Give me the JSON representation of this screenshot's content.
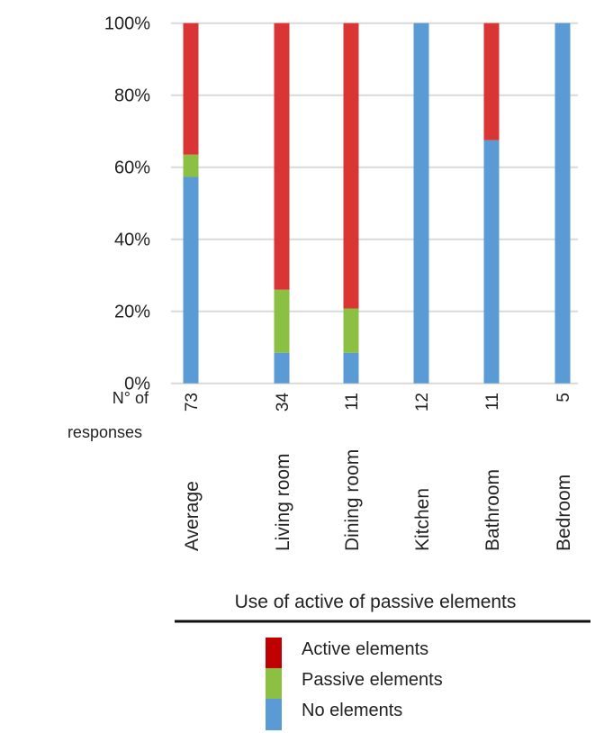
{
  "chart_data": {
    "type": "bar",
    "stacked": true,
    "percent": true,
    "categories": [
      "Average",
      "Living room",
      "Dining room",
      "Kitchen",
      "Bathroom",
      "Bedroom"
    ],
    "responses_label": [
      "N° of",
      "responses"
    ],
    "responses": [
      "73",
      "34",
      "11",
      "12",
      "11",
      "5"
    ],
    "series": [
      {
        "name": "No elements",
        "color": "#5b9bd5",
        "values": [
          57.3,
          8.5,
          8.5,
          100,
          67.5,
          100
        ]
      },
      {
        "name": "Passive elements",
        "color": "#8cc043",
        "values": [
          6.2,
          17.5,
          12.3,
          0,
          0,
          0
        ]
      },
      {
        "name": "Active elements",
        "color": "#d93535",
        "values": [
          36.5,
          74.0,
          79.2,
          0,
          32.5,
          0
        ]
      }
    ],
    "legend_colors": [
      "#c00000",
      "#8cc043",
      "#5b9bd5"
    ],
    "ylim": [
      0,
      100
    ],
    "yticks": [
      "0%",
      "20%",
      "40%",
      "60%",
      "80%",
      "100%"
    ],
    "xlabel": "Use of active of passive elements",
    "grid": true,
    "legend_placement": "bottom"
  }
}
